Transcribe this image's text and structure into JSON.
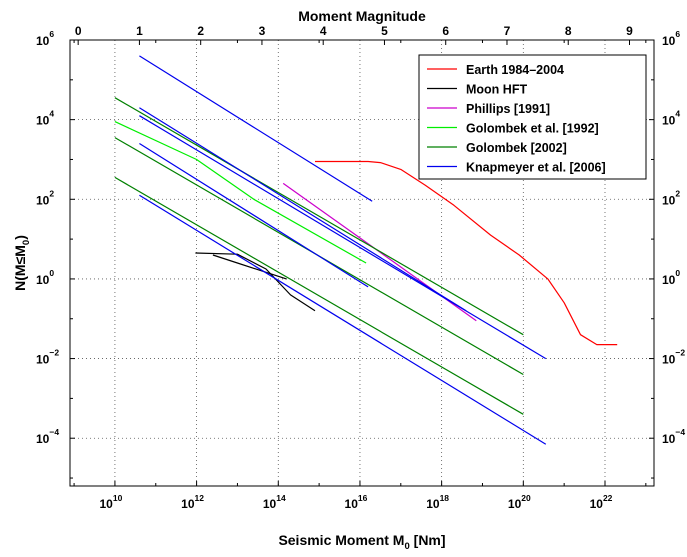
{
  "chart_data": {
    "type": "line",
    "title": "",
    "top_axis_label": "Moment Magnitude",
    "xlabel": "Seismic Moment M",
    "xlabel_sub": "0",
    "xlabel_suffix": " [Nm]",
    "ylabel": "N(M≤M",
    "ylabel_sub": "0",
    "ylabel_suffix": ")",
    "x_scale": "log10",
    "y_scale": "log10",
    "xlim_log10": [
      8.9,
      23.2
    ],
    "ylim_log10": [
      -5.2,
      6.0
    ],
    "grid": true,
    "legend_position": "top-right",
    "x_ticks": [
      {
        "base": "10",
        "exp": "10",
        "value": 10
      },
      {
        "base": "10",
        "exp": "12",
        "value": 12
      },
      {
        "base": "10",
        "exp": "14",
        "value": 14
      },
      {
        "base": "10",
        "exp": "16",
        "value": 16
      },
      {
        "base": "10",
        "exp": "18",
        "value": 18
      },
      {
        "base": "10",
        "exp": "20",
        "value": 20
      },
      {
        "base": "10",
        "exp": "22",
        "value": 22
      }
    ],
    "y_ticks": [
      {
        "base": "10",
        "exp": "6",
        "value": 6
      },
      {
        "base": "10",
        "exp": "4",
        "value": 4
      },
      {
        "base": "10",
        "exp": "2",
        "value": 2
      },
      {
        "base": "10",
        "exp": "0",
        "value": 0
      },
      {
        "base": "10",
        "exp": "−2",
        "value": -2
      },
      {
        "base": "10",
        "exp": "−4",
        "value": -4
      }
    ],
    "top_ticks": [
      "0",
      "1",
      "2",
      "3",
      "4",
      "5",
      "6",
      "7",
      "8",
      "9"
    ],
    "series": [
      {
        "name": "Earth 1984–2004",
        "color": "#ff0000",
        "lines": [
          [
            [
              14.9,
              2.95
            ],
            [
              16.2,
              2.95
            ],
            [
              16.5,
              2.92
            ],
            [
              17.0,
              2.75
            ],
            [
              17.6,
              2.35
            ],
            [
              18.3,
              1.85
            ],
            [
              19.2,
              1.1
            ],
            [
              19.9,
              0.6
            ],
            [
              20.6,
              0.0
            ],
            [
              21.0,
              -0.6
            ],
            [
              21.4,
              -1.4
            ],
            [
              21.8,
              -1.65
            ],
            [
              22.3,
              -1.65
            ]
          ]
        ]
      },
      {
        "name": "Moon HFT",
        "color": "#000000",
        "lines": [
          [
            [
              11.97,
              0.65
            ],
            [
              13.0,
              0.62
            ],
            [
              13.7,
              0.25
            ],
            [
              14.3,
              -0.4
            ],
            [
              14.9,
              -0.8
            ]
          ],
          [
            [
              12.4,
              0.6
            ],
            [
              13.0,
              0.4
            ],
            [
              14.2,
              0.0
            ]
          ]
        ]
      },
      {
        "name": "Phillips [1991]",
        "color": "#cc00cc",
        "lines": [
          [
            [
              14.12,
              2.4
            ],
            [
              18.85,
              -1.05
            ]
          ]
        ]
      },
      {
        "name": "Golombek et al. [1992]",
        "color": "#00ee00",
        "lines": [
          [
            [
              10.0,
              3.95
            ],
            [
              12.0,
              3.0
            ],
            [
              13.4,
              2.0
            ],
            [
              16.15,
              0.4
            ]
          ]
        ]
      },
      {
        "name": "Golombek [2002]",
        "color": "#008000",
        "lines": [
          [
            [
              10.0,
              4.55
            ],
            [
              20.0,
              -1.4
            ]
          ],
          [
            [
              10.0,
              3.55
            ],
            [
              20.0,
              -2.4
            ]
          ],
          [
            [
              10.0,
              2.55
            ],
            [
              20.0,
              -3.4
            ]
          ]
        ]
      },
      {
        "name": "Knapmeyer et al. [2006]",
        "color": "#0000ee",
        "lines": [
          [
            [
              10.6,
              5.6
            ],
            [
              16.3,
              1.95
            ]
          ],
          [
            [
              10.6,
              4.1
            ],
            [
              20.55,
              -2.0
            ]
          ],
          [
            [
              10.6,
              3.4
            ],
            [
              16.2,
              -0.2
            ]
          ],
          [
            [
              10.6,
              2.1
            ],
            [
              20.55,
              -4.15
            ]
          ],
          [
            [
              10.6,
              4.3
            ],
            [
              18.6,
              -0.8
            ]
          ]
        ]
      }
    ]
  }
}
